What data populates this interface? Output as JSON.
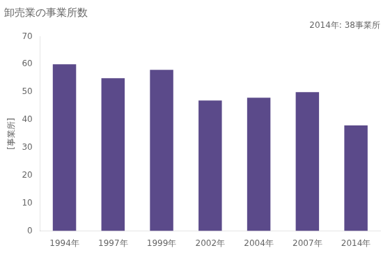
{
  "chart_data": {
    "type": "bar",
    "title": "卸売業の事業所数",
    "ylabel": "[事業所]",
    "annotation": "2014年: 38事業所",
    "categories": [
      "1994年",
      "1997年",
      "1999年",
      "2002年",
      "2004年",
      "2007年",
      "2014年"
    ],
    "values": [
      60,
      55,
      58,
      47,
      48,
      50,
      38
    ],
    "color": "#5B4A8A",
    "ylim": [
      0,
      70
    ],
    "yticks": [
      0,
      10,
      20,
      30,
      40,
      50,
      60,
      70
    ],
    "grid": false
  }
}
